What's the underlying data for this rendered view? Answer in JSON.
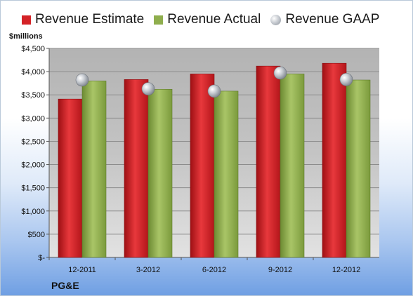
{
  "company": "PG&E",
  "chart_data": {
    "type": "bar",
    "ylabel": "$millions",
    "categories": [
      "12-2011",
      "3-2012",
      "6-2012",
      "9-2012",
      "12-2012"
    ],
    "ylim": [
      0,
      4500
    ],
    "yticks": [
      0,
      500,
      1000,
      1500,
      2000,
      2500,
      3000,
      3500,
      4000,
      4500
    ],
    "ytick_labels": [
      "$-",
      "$500",
      "$1,000",
      "$1,500",
      "$2,000",
      "$2,500",
      "$3,000",
      "$3,500",
      "$4,000",
      "$4,500"
    ],
    "legend_position": "top",
    "grid": true,
    "series": [
      {
        "name": "Revenue Estimate",
        "kind": "bar",
        "color": "#d42227",
        "values": [
          3410,
          3830,
          3950,
          4120,
          4180
        ]
      },
      {
        "name": "Revenue Actual",
        "kind": "bar",
        "color": "#8fae4d",
        "values": [
          3800,
          3620,
          3580,
          3950,
          3820
        ]
      },
      {
        "name": "Revenue GAAP",
        "kind": "marker",
        "color": "#b9bec6",
        "values": [
          3820,
          3630,
          3580,
          3970,
          3830
        ]
      }
    ]
  }
}
